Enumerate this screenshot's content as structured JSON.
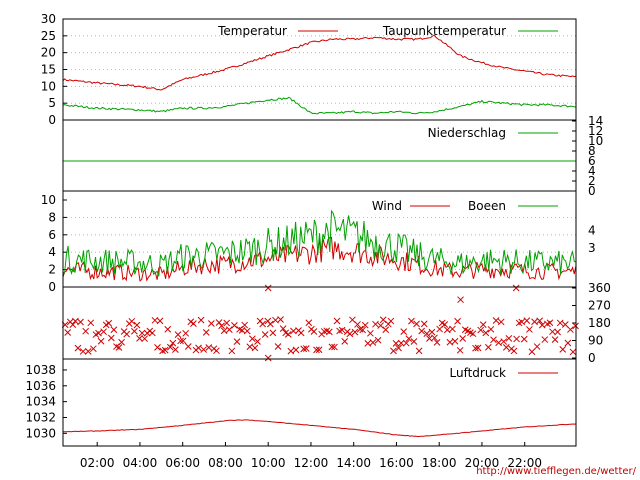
{
  "source_url": "http://www.tiefflegen.de/wetter/",
  "colors": {
    "red": "#d00000",
    "green": "#00a000",
    "grid": "#aaaaaa"
  },
  "x_axis": {
    "unit": "hour",
    "range": [
      0.4,
      24.4
    ],
    "tick_labels": [
      "02:00",
      "04:00",
      "06:00",
      "08:00",
      "10:00",
      "12:00",
      "14:00",
      "16:00",
      "18:00",
      "20:00",
      "22:00"
    ],
    "tick_hours": [
      2,
      4,
      6,
      8,
      10,
      12,
      14,
      16,
      18,
      20,
      22
    ]
  },
  "chart_data": [
    {
      "type": "line",
      "panel": "temperature",
      "ylim": [
        0,
        30
      ],
      "y_ticks": [
        0,
        5,
        10,
        15,
        20,
        25,
        30
      ],
      "y_tick_labels": [
        "0",
        "5",
        "10",
        "15",
        "20",
        "25",
        "30"
      ],
      "grid": true,
      "legend": "top",
      "x": [
        0.4,
        2,
        4,
        5,
        6,
        7,
        8,
        9,
        10,
        11,
        12,
        13,
        14,
        15,
        16,
        17,
        17.8,
        19,
        20,
        21,
        22,
        23,
        24.4
      ],
      "series": [
        {
          "name": "Temperatur",
          "color": "#d00000",
          "values": [
            12,
            11,
            10,
            9,
            12,
            13.5,
            15,
            17,
            19,
            21,
            23,
            24,
            24,
            24.5,
            24,
            24,
            25,
            19,
            17,
            15.5,
            14.5,
            13.5,
            12.8
          ]
        },
        {
          "name": "Taupunkttemperatur",
          "color": "#00a000",
          "values": [
            4.5,
            3.5,
            3,
            2.5,
            3.5,
            3.5,
            4,
            5,
            6,
            6.5,
            2,
            2,
            2.5,
            2,
            2.5,
            2,
            2.5,
            4,
            5.5,
            5,
            4.5,
            4.5,
            4
          ]
        }
      ]
    },
    {
      "type": "line",
      "panel": "precipitation",
      "ylim": [
        0,
        14
      ],
      "y_ticks": [
        0,
        2,
        4,
        6,
        8,
        10,
        12,
        14
      ],
      "y_tick_labels": [
        "0",
        "2",
        "4",
        "6",
        "8",
        "10",
        "12",
        "14"
      ],
      "grid": false,
      "legend": "top-right",
      "series": [
        {
          "name": "Niederschlag",
          "color": "#00a000",
          "constant_value": 6
        }
      ]
    },
    {
      "type": "line",
      "panel": "wind",
      "ylim": [
        0,
        10
      ],
      "y_ticks": [
        0,
        2,
        4,
        6,
        8,
        10
      ],
      "y_tick_labels": [
        "0",
        "2",
        "4",
        "6",
        "8",
        "10"
      ],
      "right_labels": [
        {
          "label": "4",
          "value": 6.5
        },
        {
          "label": "3",
          "value": 4.5
        }
      ],
      "grid": true,
      "legend": "top",
      "x": [
        0.4,
        2,
        4,
        5,
        6,
        7,
        8,
        9,
        10,
        11,
        12,
        13,
        14,
        15,
        16,
        17,
        18,
        19,
        20,
        21,
        22,
        23,
        24.4
      ],
      "series": [
        {
          "name": "Wind",
          "color": "#d00000",
          "values": [
            2,
            1.8,
            1.6,
            1.4,
            2.2,
            2.6,
            2.6,
            3,
            3.2,
            3.6,
            4,
            4.5,
            4.2,
            3.6,
            3.2,
            2.6,
            2,
            1.8,
            2,
            2,
            1.9,
            1.8,
            1.8
          ]
        },
        {
          "name": "Boeen",
          "color": "#00a000",
          "values": [
            3.2,
            3,
            2.8,
            2.5,
            3.5,
            3.6,
            3.8,
            4.2,
            4.8,
            5.2,
            5.8,
            6.5,
            6,
            5.2,
            4.6,
            3.6,
            3,
            2.7,
            3,
            3,
            2.8,
            2.8,
            2.6
          ]
        }
      ]
    },
    {
      "type": "scatter",
      "panel": "wind-direction",
      "ylim": [
        0,
        360
      ],
      "y_ticks": [
        0,
        90,
        180,
        270,
        360
      ],
      "y_tick_labels": [
        "0",
        "90",
        "180",
        "270",
        "360"
      ],
      "marker": "x",
      "color": "#d00000",
      "typical_values": [
        45,
        90,
        135,
        180
      ],
      "outliers": [
        {
          "x": 10,
          "y": 0
        },
        {
          "x": 10,
          "y": 360
        },
        {
          "x": 19,
          "y": 300
        },
        {
          "x": 21.6,
          "y": 360
        }
      ]
    },
    {
      "type": "line",
      "panel": "pressure",
      "ylim": [
        1028.4,
        1038.5
      ],
      "y_ticks": [
        1030,
        1032,
        1034,
        1036,
        1038
      ],
      "y_tick_labels": [
        "1030",
        "1032",
        "1034",
        "1036",
        "1038"
      ],
      "grid": false,
      "legend": "top-right",
      "x": [
        0.4,
        2,
        4,
        6,
        8,
        9,
        10,
        12,
        14,
        16,
        17,
        18,
        20,
        22,
        24.4
      ],
      "series": [
        {
          "name": "Luftdruck",
          "color": "#d00000",
          "values": [
            1030.2,
            1030.3,
            1030.5,
            1031,
            1031.6,
            1031.7,
            1031.5,
            1031,
            1030.5,
            1029.8,
            1029.6,
            1029.8,
            1030.3,
            1030.8,
            1031.2
          ]
        }
      ]
    }
  ]
}
